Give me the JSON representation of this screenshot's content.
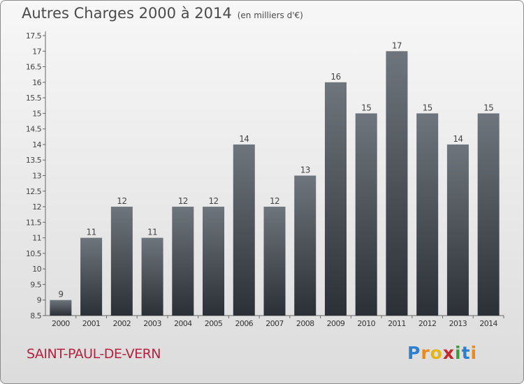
{
  "title": "Autres Charges 2000 à 2014",
  "unit_note": "(en milliers d'€)",
  "town": "SAINT-PAUL-DE-VERN",
  "logo_letters": [
    "P",
    "r",
    "o",
    "x",
    "i",
    "t",
    "i"
  ],
  "colors": {
    "bar_top": "#6f757c",
    "bar_bottom": "#2b3036",
    "town": "#b5223f",
    "text": "#4a4a4a"
  },
  "chart_data": {
    "type": "bar",
    "categories": [
      "2000",
      "2001",
      "2002",
      "2003",
      "2004",
      "2005",
      "2006",
      "2007",
      "2008",
      "2009",
      "2010",
      "2011",
      "2012",
      "2013",
      "2014"
    ],
    "values": [
      9,
      11,
      12,
      11,
      12,
      12,
      14,
      12,
      13,
      16,
      15,
      17,
      15,
      14,
      15
    ],
    "value_labels": [
      "9",
      "11",
      "12",
      "11",
      "12",
      "12",
      "14",
      "12",
      "13",
      "16",
      "15",
      "17",
      "15",
      "14",
      "15"
    ],
    "ylim": [
      8.5,
      17.5
    ],
    "yticks": [
      "8.5",
      "9",
      "9.5",
      "10",
      "10.5",
      "11",
      "11.5",
      "12",
      "12.5",
      "13",
      "13.5",
      "14",
      "14.5",
      "15",
      "15.5",
      "16",
      "16.5",
      "17",
      "17.5"
    ],
    "grid": false,
    "title": "Autres Charges 2000 à 2014",
    "xlabel": "",
    "ylabel": ""
  }
}
